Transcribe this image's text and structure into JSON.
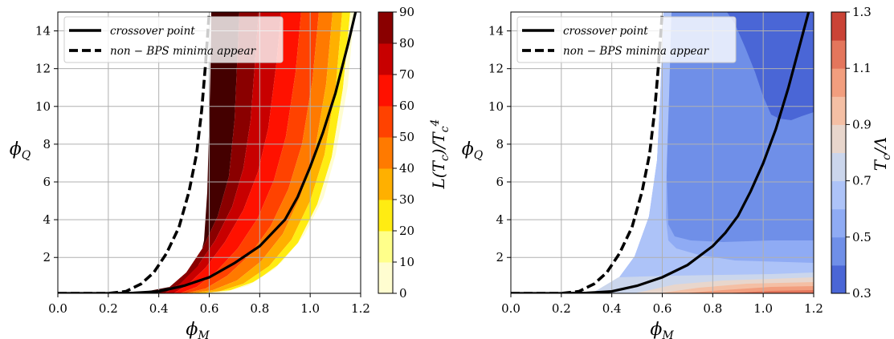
{
  "chart_data": [
    {
      "type": "contour",
      "xlabel": "ϕ_M",
      "ylabel": "ϕ_Q",
      "xlim": [
        0.0,
        1.2
      ],
      "ylim": [
        0.1,
        15
      ],
      "xticks": [
        "0.0",
        "0.2",
        "0.4",
        "0.6",
        "0.8",
        "1.0",
        "1.2"
      ],
      "yticks": [
        "2",
        "4",
        "6",
        "8",
        "10",
        "12",
        "14"
      ],
      "grid": true,
      "legend_position": "top-left",
      "colorbar": {
        "label": "L(T_c)/T_c^4",
        "levels": [
          0,
          10,
          20,
          30,
          40,
          50,
          60,
          70,
          80,
          90
        ],
        "tick_labels": [
          "0",
          "10",
          "20",
          "30",
          "40",
          "50",
          "60",
          "70",
          "80",
          "90"
        ],
        "colors": [
          "#fffdd0",
          "#ffff8a",
          "#ffec12",
          "#ffb000",
          "#ff7a00",
          "#ff4200",
          "#ff1100",
          "#c80000",
          "#8a0000",
          "#440000"
        ]
      },
      "series": [
        {
          "name": "crossover point",
          "style": "solid",
          "x": [
            0.0,
            0.2,
            0.3,
            0.4,
            0.5,
            0.6,
            0.7,
            0.8,
            0.9,
            0.95,
            1.0,
            1.05,
            1.1,
            1.15,
            1.18
          ],
          "y": [
            0.1,
            0.1,
            0.12,
            0.2,
            0.5,
            0.95,
            1.7,
            2.6,
            4.0,
            5.2,
            6.8,
            8.6,
            10.7,
            13.3,
            15
          ]
        },
        {
          "name": "non − BPS minima appear",
          "style": "dashed",
          "x": [
            0.0,
            0.2,
            0.27,
            0.33,
            0.38,
            0.43,
            0.48,
            0.52,
            0.55,
            0.57,
            0.585,
            0.6
          ],
          "y": [
            0.1,
            0.1,
            0.2,
            0.6,
            1.2,
            2.2,
            3.6,
            5.5,
            7.5,
            9.8,
            12.2,
            15
          ]
        }
      ]
    },
    {
      "type": "contour",
      "xlabel": "ϕ_M",
      "ylabel": "ϕ_Q",
      "xlim": [
        0.0,
        1.2
      ],
      "ylim": [
        0.1,
        15
      ],
      "xticks": [
        "0.0",
        "0.2",
        "0.4",
        "0.6",
        "0.8",
        "1.0",
        "1.2"
      ],
      "yticks": [
        "2",
        "4",
        "6",
        "8",
        "10",
        "12",
        "14"
      ],
      "grid": true,
      "legend_position": "top-left",
      "colorbar": {
        "label": "T_c/Λ",
        "levels": [
          0.3,
          0.4,
          0.5,
          0.6,
          0.7,
          0.8,
          0.9,
          1.0,
          1.1,
          1.2,
          1.3
        ],
        "tick_labels": [
          "0.3",
          "0.5",
          "0.7",
          "0.9",
          "1.1",
          "1.3"
        ],
        "colors": [
          "#4a66d6",
          "#6f8fe8",
          "#8fabf4",
          "#adc3f8",
          "#cbd6ec",
          "#e8d6cc",
          "#f4bfa4",
          "#f29e7e",
          "#e4765c",
          "#ca4336"
        ]
      },
      "series": [
        {
          "name": "crossover point",
          "style": "solid",
          "x": [
            0.0,
            0.2,
            0.3,
            0.4,
            0.5,
            0.6,
            0.7,
            0.8,
            0.85,
            0.9,
            0.95,
            1.0,
            1.05,
            1.1,
            1.15,
            1.18
          ],
          "y": [
            0.1,
            0.1,
            0.12,
            0.2,
            0.5,
            0.95,
            1.6,
            2.6,
            3.3,
            4.2,
            5.5,
            7.0,
            8.8,
            11.0,
            13.5,
            15
          ]
        },
        {
          "name": "non − BPS minima appear",
          "style": "dashed",
          "x": [
            0.0,
            0.2,
            0.27,
            0.33,
            0.38,
            0.43,
            0.48,
            0.52,
            0.55,
            0.57,
            0.585,
            0.6
          ],
          "y": [
            0.1,
            0.1,
            0.2,
            0.6,
            1.2,
            2.2,
            3.6,
            5.5,
            7.5,
            9.8,
            12.2,
            15
          ]
        }
      ],
      "regions": [
        {
          "level": "0.40–0.50",
          "description": "dark band upper right",
          "x": [
            0.91,
            1.2
          ],
          "y": [
            9.3,
            15
          ]
        },
        {
          "level": "0.50–0.60",
          "description": "middle band",
          "x": [
            0.6,
            1.2
          ],
          "y": [
            1.2,
            15
          ]
        },
        {
          "level": "0.60–0.70",
          "description": "left band near dashed line",
          "x": [
            0.3,
            0.63
          ],
          "y": [
            0.1,
            15
          ]
        },
        {
          "level": "0.8–1.3",
          "description": "thin warm bands along bottom",
          "x": [
            0.5,
            1.2
          ],
          "y": [
            0.1,
            0.9
          ]
        }
      ]
    }
  ]
}
